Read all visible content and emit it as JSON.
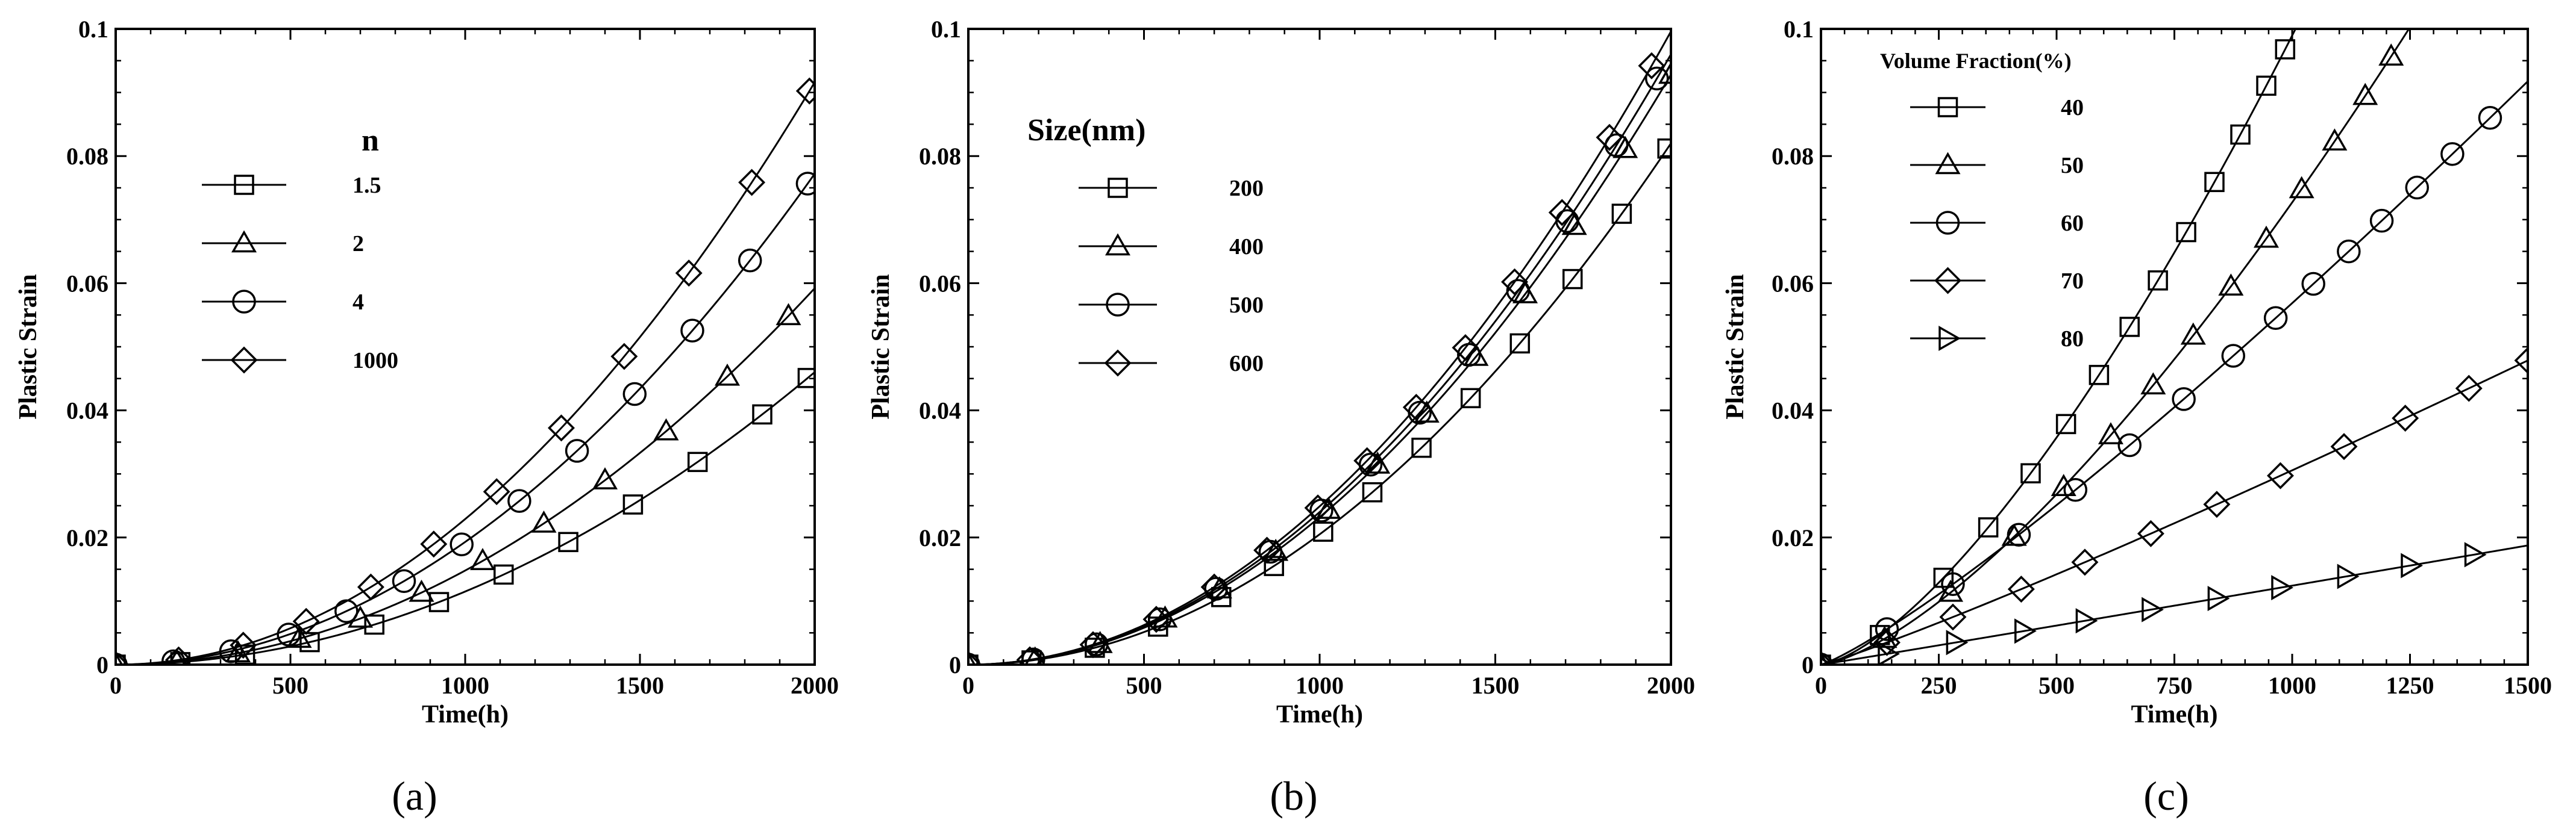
{
  "chart_data": [
    {
      "type": "line",
      "panel": "a",
      "caption": "(a)",
      "xlabel": "Time(h)",
      "ylabel": "Plastic Strain",
      "xlim": [
        0,
        2000
      ],
      "ylim": [
        0,
        0.1
      ],
      "xticks": [
        0,
        500,
        1000,
        1500,
        2000
      ],
      "xtick_labels": [
        "0",
        "500",
        "1000",
        "1500",
        "2000"
      ],
      "yticks": [
        0,
        0.02,
        0.04,
        0.06,
        0.08,
        0.1
      ],
      "ytick_labels": [
        "0",
        "0.02",
        "0.04",
        "0.06",
        "0.08",
        "0.1"
      ],
      "legend_title": "n",
      "legend_position": "upper-left",
      "series": [
        {
          "name": "1.5",
          "marker": "square",
          "coef": 1.15e-08,
          "power": 2,
          "marker_x": [
            0,
            185,
            370,
            555,
            740,
            925,
            1110,
            1295,
            1480,
            1665,
            1850,
            1980
          ]
        },
        {
          "name": "2",
          "marker": "triangle",
          "coef": 1.48e-08,
          "power": 2,
          "marker_x": [
            0,
            175,
            350,
            525,
            700,
            875,
            1050,
            1225,
            1400,
            1575,
            1750,
            1925
          ]
        },
        {
          "name": "4",
          "marker": "circle",
          "coef": 1.93e-08,
          "power": 2,
          "marker_x": [
            0,
            165,
            330,
            495,
            660,
            825,
            990,
            1155,
            1320,
            1485,
            1650,
            1815,
            1980
          ]
        },
        {
          "name": "1000",
          "marker": "diamond",
          "coef": 2.29e-08,
          "power": 2,
          "marker_x": [
            0,
            180,
            365,
            545,
            730,
            910,
            1090,
            1275,
            1455,
            1640,
            1820,
            1985
          ]
        }
      ]
    },
    {
      "type": "line",
      "panel": "b",
      "caption": "(b)",
      "xlabel": "Time(h)",
      "ylabel": "Plastic Strain",
      "xlim": [
        0,
        2000
      ],
      "ylim": [
        0,
        0.1
      ],
      "xticks": [
        0,
        500,
        1000,
        1500,
        2000
      ],
      "xtick_labels": [
        "0",
        "500",
        "1000",
        "1500",
        "2000"
      ],
      "yticks": [
        0,
        0.02,
        0.04,
        0.06,
        0.08,
        0.1
      ],
      "ytick_labels": [
        "0",
        "0.02",
        "0.04",
        "0.06",
        "0.08",
        "0.1"
      ],
      "legend_title": "Size(nm)",
      "legend_position": "upper-left",
      "series": [
        {
          "name": "200",
          "marker": "square",
          "coef": 2.05e-08,
          "power": 2,
          "marker_x": [
            0,
            180,
            360,
            540,
            720,
            870,
            1010,
            1150,
            1290,
            1430,
            1570,
            1720,
            1860,
            1990
          ]
        },
        {
          "name": "400",
          "marker": "triangle",
          "coef": 2.32e-08,
          "power": 2,
          "marker_x": [
            0,
            190,
            375,
            560,
            715,
            875,
            1025,
            1165,
            1305,
            1445,
            1585,
            1725,
            1870,
            2000
          ]
        },
        {
          "name": "500",
          "marker": "circle",
          "coef": 2.4e-08,
          "power": 2,
          "marker_x": [
            0,
            185,
            365,
            545,
            705,
            860,
            1005,
            1145,
            1285,
            1425,
            1565,
            1705,
            1845,
            1960
          ]
        },
        {
          "name": "600",
          "marker": "diamond",
          "coef": 2.49e-08,
          "power": 2,
          "marker_x": [
            0,
            175,
            355,
            535,
            700,
            850,
            995,
            1135,
            1275,
            1415,
            1555,
            1690,
            1825,
            1945
          ]
        }
      ]
    },
    {
      "type": "line",
      "panel": "c",
      "caption": "(c)",
      "xlabel": "Time(h)",
      "ylabel": "Plastic Strain",
      "xlim": [
        0,
        1500
      ],
      "ylim": [
        0,
        0.1
      ],
      "xticks": [
        0,
        250,
        500,
        750,
        1000,
        1250,
        1500
      ],
      "xtick_labels": [
        "0",
        "250",
        "500",
        "750",
        "1000",
        "1250",
        "1500"
      ],
      "yticks": [
        0,
        0.02,
        0.04,
        0.06,
        0.08,
        0.1
      ],
      "ytick_labels": [
        "0",
        "0.02",
        "0.04",
        "0.06",
        "0.08",
        "0.1"
      ],
      "legend_title": "Volume Fraction(%)",
      "legend_position": "upper-left",
      "series": [
        {
          "name": "40",
          "marker": "square",
          "coef": 3.85e-06,
          "power": 1.47,
          "marker_x": [
            0,
            125,
            260,
            355,
            445,
            520,
            590,
            655,
            715,
            775,
            835,
            890,
            945,
            985
          ]
        },
        {
          "name": "50",
          "marker": "triangle",
          "coef": 3.48e-06,
          "power": 1.44,
          "marker_x": [
            0,
            135,
            275,
            410,
            515,
            615,
            705,
            790,
            870,
            945,
            1020,
            1090,
            1155,
            1210
          ]
        },
        {
          "name": "60",
          "marker": "circle",
          "coef": 1.64e-05,
          "power": 1.18,
          "marker_x": [
            0,
            140,
            280,
            420,
            540,
            655,
            770,
            875,
            965,
            1045,
            1120,
            1190,
            1265,
            1340,
            1420
          ]
        },
        {
          "name": "70",
          "marker": "diamond",
          "coef": 1.48e-05,
          "power": 1.105,
          "marker_x": [
            0,
            140,
            280,
            425,
            560,
            700,
            840,
            975,
            1110,
            1240,
            1375,
            1500
          ]
        },
        {
          "name": "80",
          "marker": "tri-right",
          "coef": 1.12e-05,
          "power": 1.015,
          "marker_x": [
            0,
            140,
            285,
            430,
            560,
            700,
            840,
            975,
            1115,
            1250,
            1385
          ]
        }
      ]
    }
  ]
}
